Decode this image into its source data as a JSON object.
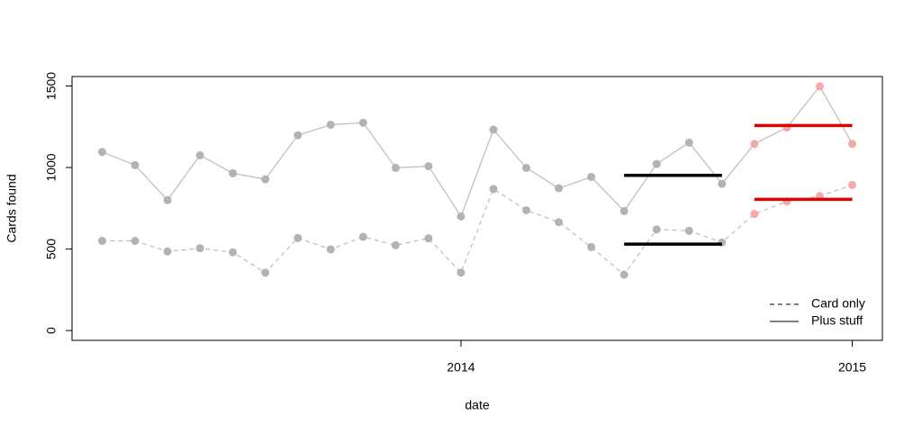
{
  "chart_data": {
    "type": "line",
    "x_label": "date",
    "y_label": "Cards found",
    "x": [
      2013.083,
      2013.167,
      2013.25,
      2013.333,
      2013.417,
      2013.5,
      2013.583,
      2013.667,
      2013.75,
      2013.833,
      2013.917,
      2014,
      2014.083,
      2014.167,
      2014.25,
      2014.333,
      2014.417,
      2014.5,
      2014.583,
      2014.667,
      2014.75,
      2014.833,
      2014.917,
      2015
    ],
    "series": [
      {
        "name": "Card only",
        "line": "dashed",
        "color": "#bdbdbd",
        "values": [
          550,
          550,
          485,
          505,
          480,
          355,
          568,
          498,
          575,
          523,
          566,
          355,
          868,
          738,
          665,
          512,
          343,
          620,
          612,
          540,
          715,
          792,
          825,
          893
        ],
        "point_colors": [
          "#b3b3b3",
          "#b3b3b3",
          "#b3b3b3",
          "#b3b3b3",
          "#b3b3b3",
          "#b3b3b3",
          "#b3b3b3",
          "#b3b3b3",
          "#b3b3b3",
          "#b3b3b3",
          "#b3b3b3",
          "#b3b3b3",
          "#b3b3b3",
          "#b3b3b3",
          "#b3b3b3",
          "#b3b3b3",
          "#b3b3b3",
          "#b3b3b3",
          "#b3b3b3",
          "#b3b3b3",
          "#f5aaaa",
          "#f5aaaa",
          "#f5aaaa",
          "#f5aaaa"
        ]
      },
      {
        "name": "Plus stuff",
        "line": "solid",
        "color": "#bdbdbd",
        "values": [
          1095,
          1015,
          800,
          1075,
          965,
          928,
          1198,
          1262,
          1275,
          998,
          1008,
          700,
          1232,
          998,
          873,
          942,
          733,
          1022,
          1153,
          900,
          1145,
          1245,
          1498,
          1145
        ],
        "point_colors": [
          "#b3b3b3",
          "#b3b3b3",
          "#b3b3b3",
          "#b3b3b3",
          "#b3b3b3",
          "#b3b3b3",
          "#b3b3b3",
          "#b3b3b3",
          "#b3b3b3",
          "#b3b3b3",
          "#b3b3b3",
          "#b3b3b3",
          "#b3b3b3",
          "#b3b3b3",
          "#b3b3b3",
          "#b3b3b3",
          "#b3b3b3",
          "#b3b3b3",
          "#b3b3b3",
          "#b3b3b3",
          "#f5aaaa",
          "#f5aaaa",
          "#f5aaaa",
          "#f5aaaa"
        ]
      }
    ],
    "segments": [
      {
        "x": [
          2014.417,
          2014.667
        ],
        "value": 952,
        "color": "#000000"
      },
      {
        "x": [
          2014.417,
          2014.667
        ],
        "value": 530,
        "color": "#000000"
      },
      {
        "x": [
          2014.75,
          2015
        ],
        "value": 1258,
        "color": "#dd0000"
      },
      {
        "x": [
          2014.75,
          2015
        ],
        "value": 805,
        "color": "#dd0000"
      }
    ],
    "xlim": [
      2013.006,
      2015.077
    ],
    "xticks": [
      2014,
      2015
    ],
    "ylim": [
      -60,
      1558
    ],
    "yticks": [
      0,
      500,
      1000,
      1500
    ],
    "legend": "bottomright"
  }
}
